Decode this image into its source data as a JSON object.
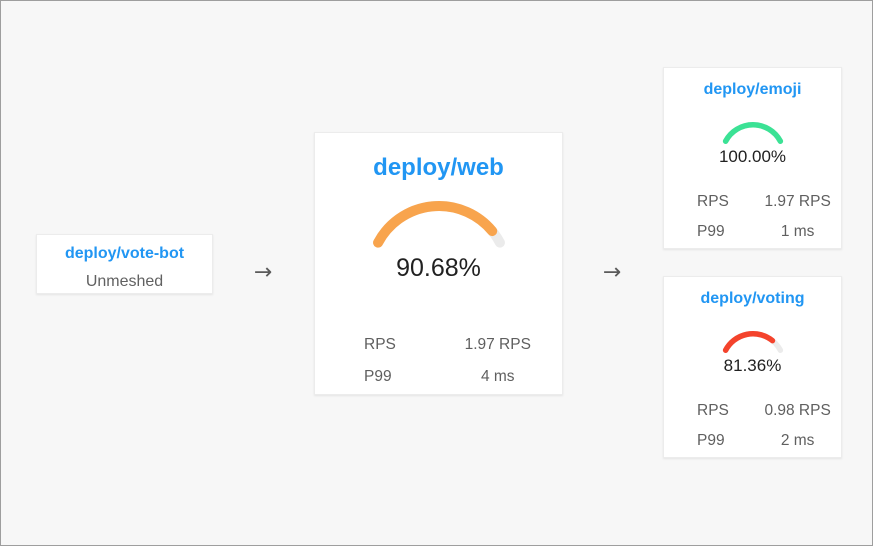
{
  "ui": {
    "arrow_glyph": "→",
    "background": "#f7f7f7",
    "accent_blue": "#2196f3"
  },
  "source_node": {
    "title": "deploy/vote-bot",
    "status": "Unmeshed"
  },
  "center_node": {
    "title": "deploy/web",
    "gauge": {
      "percent": 90.68,
      "display": "90.68%",
      "color": "#F8A44D",
      "track": "#EBEBEB"
    },
    "stats": [
      {
        "label": "RPS",
        "value": "1.97 RPS"
      },
      {
        "label": "P99",
        "value": "4 ms"
      }
    ]
  },
  "downstream_nodes": [
    {
      "title": "deploy/emoji",
      "gauge": {
        "percent": 100,
        "display": "100.00%",
        "color": "#3BE295",
        "track": "#EBEBEB"
      },
      "stats": [
        {
          "label": "RPS",
          "value": "1.97 RPS"
        },
        {
          "label": "P99",
          "value": "1 ms"
        }
      ]
    },
    {
      "title": "deploy/voting",
      "gauge": {
        "percent": 81.36,
        "display": "81.36%",
        "color": "#F4432C",
        "track": "#EBEBEB"
      },
      "stats": [
        {
          "label": "RPS",
          "value": "0.98 RPS"
        },
        {
          "label": "P99",
          "value": "2 ms"
        }
      ]
    }
  ]
}
